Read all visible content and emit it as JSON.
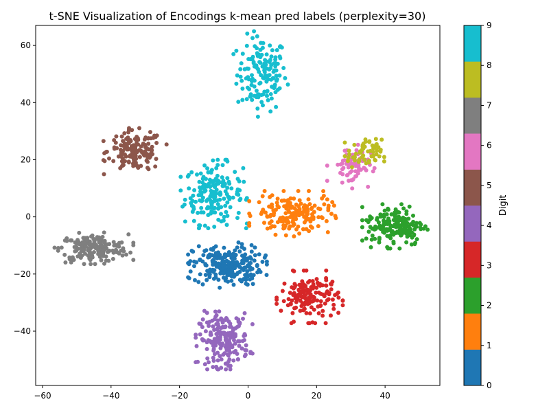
{
  "chart_data": {
    "type": "scatter",
    "title": "t-SNE Visualization of Encodings k-mean pred labels (perplexity=30)",
    "xlabel": "",
    "ylabel": "",
    "xlim": [
      -62,
      56
    ],
    "ylim": [
      -59,
      67
    ],
    "xticks": [
      -60,
      -40,
      -20,
      0,
      20,
      40
    ],
    "yticks": [
      -40,
      -20,
      0,
      20,
      40,
      60
    ],
    "grid": false,
    "colorbar": {
      "label": "Digit",
      "ticks": [
        "0",
        "1",
        "2",
        "3",
        "4",
        "5",
        "6",
        "7",
        "8",
        "9"
      ],
      "colors": [
        "#1f77b4",
        "#ff7f0e",
        "#2ca02c",
        "#d62728",
        "#9467bd",
        "#8c564b",
        "#e377c2",
        "#7f7f7f",
        "#bcbd22",
        "#17becf"
      ]
    },
    "clusters": [
      {
        "label": "9",
        "color": "#17becf",
        "cx": 4,
        "cy": 50,
        "sx": 3.6,
        "sy": 6.5,
        "n": 150
      },
      {
        "label": "9",
        "color": "#17becf",
        "cx": -10,
        "cy": 8,
        "sx": 4.2,
        "sy": 5.2,
        "n": 190
      },
      {
        "label": "5",
        "color": "#8c564b",
        "cx": -33,
        "cy": 23,
        "sx": 4.0,
        "sy": 3.5,
        "n": 150
      },
      {
        "label": "7",
        "color": "#7f7f7f",
        "cx": -45,
        "cy": -11,
        "sx": 5.0,
        "sy": 2.4,
        "n": 190
      },
      {
        "label": "0",
        "color": "#1f77b4",
        "cx": -6,
        "cy": -17,
        "sx": 5.0,
        "sy": 3.5,
        "n": 240
      },
      {
        "label": "4",
        "color": "#9467bd",
        "cx": -7,
        "cy": -43,
        "sx": 3.6,
        "sy": 4.5,
        "n": 200
      },
      {
        "label": "3",
        "color": "#d62728",
        "cx": 18,
        "cy": -28,
        "sx": 4.2,
        "sy": 4.0,
        "n": 160
      },
      {
        "label": "1",
        "color": "#ff7f0e",
        "cx": 13,
        "cy": 1,
        "sx": 5.5,
        "sy": 3.5,
        "n": 170
      },
      {
        "label": "6",
        "color": "#e377c2",
        "cx": 30,
        "cy": 18,
        "sx": 3.0,
        "sy": 3.5,
        "n": 70
      },
      {
        "label": "8",
        "color": "#bcbd22",
        "cx": 34,
        "cy": 22,
        "sx": 2.5,
        "sy": 2.5,
        "n": 60
      },
      {
        "label": "2",
        "color": "#2ca02c",
        "cx": 43,
        "cy": -3,
        "sx": 4.2,
        "sy": 3.5,
        "n": 180
      }
    ]
  }
}
